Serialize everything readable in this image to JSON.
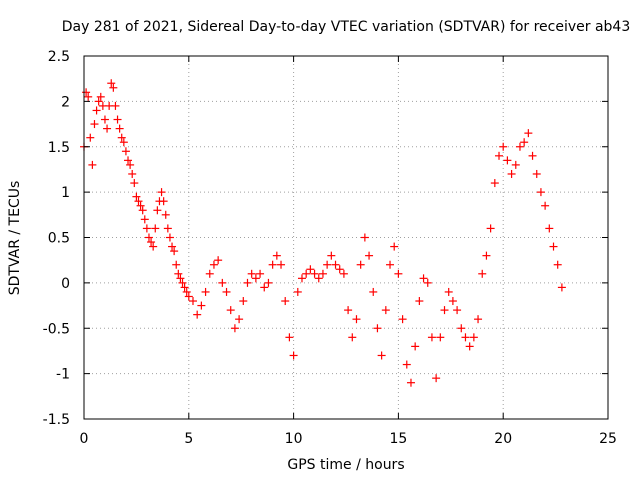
{
  "chart_data": {
    "type": "scatter",
    "title": "Day 281 of 2021, Sidereal Day-to-day VTEC variation (SDTVAR) for receiver ab43",
    "xlabel": "GPS time / hours",
    "ylabel": "SDTVAR / TECUs",
    "xlim": [
      0,
      25
    ],
    "ylim": [
      -1.5,
      2.5
    ],
    "xticks": [
      "0",
      "5",
      "10",
      "15",
      "20",
      "25"
    ],
    "yticks": [
      "-1.5",
      "-1",
      "-0.5",
      "0",
      "0.5",
      "1",
      "1.5",
      "2",
      "2.5"
    ],
    "grid": true,
    "marker": "+",
    "color": "#ff0000",
    "series": [
      {
        "name": "SDTVAR",
        "x": [
          0.0,
          0.1,
          0.2,
          0.3,
          0.4,
          0.5,
          0.6,
          0.7,
          0.8,
          0.9,
          1.0,
          1.1,
          1.2,
          1.3,
          1.4,
          1.5,
          1.6,
          1.7,
          1.8,
          1.9,
          2.0,
          2.1,
          2.2,
          2.3,
          2.4,
          2.5,
          2.6,
          2.7,
          2.8,
          2.9,
          3.0,
          3.1,
          3.2,
          3.3,
          3.4,
          3.5,
          3.6,
          3.7,
          3.8,
          3.9,
          4.0,
          4.1,
          4.2,
          4.3,
          4.4,
          4.5,
          4.6,
          4.7,
          4.8,
          4.9,
          5.0,
          5.2,
          5.4,
          5.6,
          5.8,
          6.0,
          6.2,
          6.4,
          6.6,
          6.8,
          7.0,
          7.2,
          7.4,
          7.6,
          7.8,
          8.0,
          8.2,
          8.4,
          8.6,
          8.8,
          9.0,
          9.2,
          9.4,
          9.6,
          9.8,
          10.0,
          10.2,
          10.4,
          10.6,
          10.8,
          11.0,
          11.2,
          11.4,
          11.6,
          11.8,
          12.0,
          12.2,
          12.4,
          12.6,
          12.8,
          13.0,
          13.2,
          13.4,
          13.6,
          13.8,
          14.0,
          14.2,
          14.4,
          14.6,
          14.8,
          15.0,
          15.2,
          15.4,
          15.6,
          15.8,
          16.0,
          16.2,
          16.4,
          16.6,
          16.8,
          17.0,
          17.2,
          17.4,
          17.6,
          17.8,
          18.0,
          18.2,
          18.4,
          18.6,
          18.8,
          19.0,
          19.2,
          19.4,
          19.6,
          19.8,
          20.0,
          20.2,
          20.4,
          20.6,
          20.8,
          21.0,
          21.2,
          21.4,
          21.6,
          21.8,
          22.0,
          22.2,
          22.4,
          22.6,
          22.8
        ],
        "y": [
          1.5,
          2.1,
          2.05,
          1.6,
          1.3,
          1.75,
          1.9,
          2.0,
          2.05,
          1.95,
          1.8,
          1.7,
          1.95,
          2.2,
          2.15,
          1.95,
          1.8,
          1.7,
          1.6,
          1.55,
          1.45,
          1.35,
          1.3,
          1.2,
          1.1,
          0.95,
          0.9,
          0.85,
          0.8,
          0.7,
          0.6,
          0.5,
          0.45,
          0.4,
          0.6,
          0.8,
          0.9,
          1.0,
          0.9,
          0.75,
          0.6,
          0.5,
          0.4,
          0.35,
          0.2,
          0.1,
          0.05,
          0.0,
          -0.05,
          -0.1,
          -0.15,
          -0.2,
          -0.35,
          -0.25,
          -0.1,
          0.1,
          0.2,
          0.25,
          0.0,
          -0.1,
          -0.3,
          -0.5,
          -0.4,
          -0.2,
          0.0,
          0.1,
          0.05,
          0.1,
          -0.05,
          0.0,
          0.2,
          0.3,
          0.2,
          -0.2,
          -0.6,
          -0.8,
          -0.1,
          0.05,
          0.1,
          0.15,
          0.1,
          0.05,
          0.1,
          0.2,
          0.3,
          0.2,
          0.15,
          0.1,
          -0.3,
          -0.6,
          -0.4,
          0.2,
          0.5,
          0.3,
          -0.1,
          -0.5,
          -0.8,
          -0.3,
          0.2,
          0.4,
          0.1,
          -0.4,
          -0.9,
          -1.1,
          -0.7,
          -0.2,
          0.05,
          0.0,
          -0.6,
          -1.05,
          -0.6,
          -0.3,
          -0.1,
          -0.2,
          -0.3,
          -0.5,
          -0.6,
          -0.7,
          -0.6,
          -0.4,
          0.1,
          0.3,
          0.6,
          1.1,
          1.4,
          1.5,
          1.35,
          1.2,
          1.3,
          1.5,
          1.55,
          1.65,
          1.4,
          1.2,
          1.0,
          0.85,
          0.6,
          0.4,
          0.2,
          -0.05
        ]
      }
    ]
  }
}
